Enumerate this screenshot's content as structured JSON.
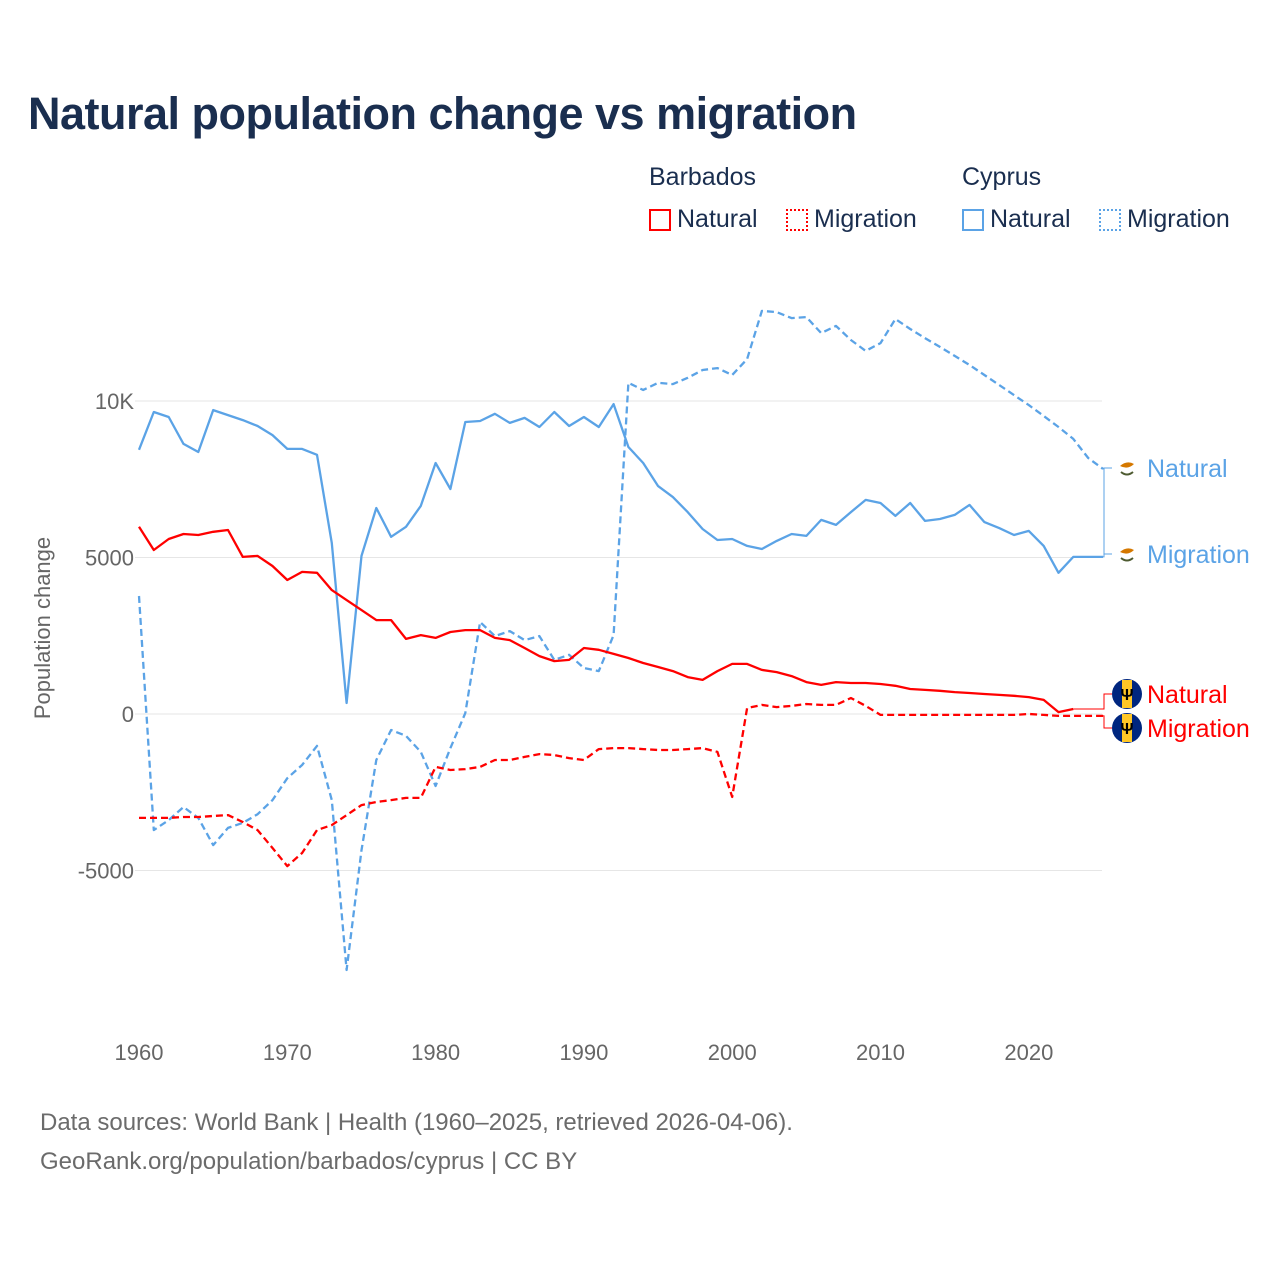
{
  "title": "Natural population change vs migration",
  "legend": {
    "groups": [
      {
        "name": "Barbados",
        "color": "#ff0000",
        "items": [
          "Natural",
          "Migration"
        ]
      },
      {
        "name": "Cyprus",
        "color": "#5ba3e6",
        "items": [
          "Natural",
          "Migration"
        ]
      }
    ]
  },
  "footer": {
    "line1": "Data sources: World Bank | Health (1960–2025, retrieved 2026-04-06).",
    "line2": "GeoRank.org/population/barbados/cyprus | CC BY"
  },
  "chart_data": {
    "type": "line",
    "title": "Natural population change vs migration",
    "xlabel": "",
    "ylabel": "Population change",
    "xlim": [
      1960,
      2025
    ],
    "ylim": [
      -9000,
      14000
    ],
    "x_ticks": [
      1960,
      1970,
      1980,
      1990,
      2000,
      2010,
      2020
    ],
    "x_tick_labels": [
      "1960",
      "1970",
      "1980",
      "1990",
      "2000",
      "2010",
      "2020"
    ],
    "y_ticks": [
      -5000,
      0,
      5000,
      10000
    ],
    "y_tick_labels": [
      "-5000",
      "0",
      "5000",
      "10K"
    ],
    "grid": true,
    "legend_position": "top-right",
    "x_start": 1960,
    "series": [
      {
        "name": "Cyprus Natural",
        "label": "Natural",
        "country": "Cyprus",
        "color": "#5ba3e6",
        "dashed": false,
        "flag": "cyprus",
        "values": [
          8440,
          9650,
          9490,
          8630,
          8370,
          9710,
          9550,
          9390,
          9200,
          8910,
          8470,
          8470,
          8280,
          5460,
          350,
          5050,
          6580,
          5660,
          5980,
          6650,
          8020,
          7190,
          9330,
          9360,
          9590,
          9300,
          9460,
          9170,
          9650,
          9200,
          9490,
          9170,
          9900,
          8530,
          8020,
          7280,
          6930,
          6450,
          5910,
          5560,
          5590,
          5370,
          5270,
          5530,
          5750,
          5690,
          6200,
          6040,
          6450,
          6840,
          6740,
          6330,
          6740,
          6170,
          6230,
          6360,
          6680,
          6130,
          5940,
          5720,
          5850,
          5370,
          4510,
          5020,
          5020,
          5020
        ]
      },
      {
        "name": "Cyprus Migration",
        "label": "Migration",
        "country": "Cyprus",
        "color": "#5ba3e6",
        "dashed": true,
        "flag": "cyprus",
        "values": [
          3770,
          -3710,
          -3390,
          -2970,
          -3320,
          -4190,
          -3640,
          -3480,
          -3200,
          -2750,
          -2050,
          -1630,
          -1020,
          -2750,
          -8180,
          -4350,
          -1470,
          -510,
          -700,
          -1210,
          -2300,
          -1090,
          30,
          2940,
          2490,
          2650,
          2360,
          2490,
          1730,
          1890,
          1470,
          1370,
          2520,
          10580,
          10350,
          10580,
          10540,
          10740,
          10990,
          11050,
          10830,
          11340,
          12880,
          12840,
          12650,
          12680,
          12170,
          12400,
          11950,
          11600,
          11850,
          12620,
          12300,
          12010,
          11730,
          11440,
          11150,
          10830,
          10510,
          10190,
          9870,
          9520,
          9170,
          8790,
          8180,
          7830
        ]
      },
      {
        "name": "Barbados Natural",
        "label": "Natural",
        "country": "Barbados",
        "color": "#ff0000",
        "dashed": false,
        "flag": "barbados",
        "values": [
          5980,
          5240,
          5590,
          5750,
          5720,
          5820,
          5880,
          5020,
          5050,
          4730,
          4280,
          4540,
          4510,
          3960,
          3640,
          3320,
          3000,
          3000,
          2400,
          2520,
          2430,
          2620,
          2680,
          2680,
          2430,
          2360,
          2110,
          1850,
          1690,
          1730,
          2110,
          2050,
          1920,
          1790,
          1630,
          1500,
          1370,
          1180,
          1090,
          1370,
          1600,
          1600,
          1410,
          1340,
          1210,
          1020,
          930,
          1020,
          990,
          990,
          960,
          900,
          800,
          770,
          740,
          700,
          670,
          640,
          610,
          580,
          540,
          450,
          60,
          160,
          null,
          null
        ]
      },
      {
        "name": "Barbados Migration",
        "label": "Migration",
        "country": "Barbados",
        "color": "#ff0000",
        "dashed": true,
        "flag": "barbados",
        "values": [
          -3320,
          -3320,
          -3320,
          -3290,
          -3290,
          -3260,
          -3230,
          -3450,
          -3710,
          -4280,
          -4860,
          -4440,
          -3710,
          -3550,
          -3230,
          -2910,
          -2810,
          -2750,
          -2680,
          -2680,
          -1690,
          -1790,
          -1760,
          -1690,
          -1470,
          -1470,
          -1370,
          -1280,
          -1310,
          -1410,
          -1470,
          -1120,
          -1090,
          -1090,
          -1120,
          -1150,
          -1150,
          -1120,
          -1090,
          -1210,
          -2650,
          190,
          290,
          220,
          260,
          320,
          290,
          290,
          510,
          260,
          -30,
          -30,
          -30,
          -30,
          -30,
          -30,
          -30,
          -30,
          -30,
          -30,
          0,
          -30,
          -60,
          -60,
          -60,
          -60
        ]
      }
    ]
  }
}
